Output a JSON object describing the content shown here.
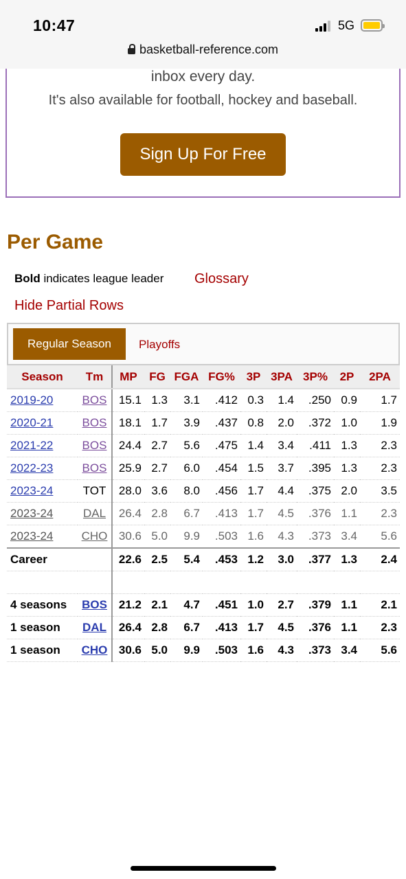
{
  "status": {
    "time": "10:47",
    "network": "5G",
    "url": "basketball-reference.com"
  },
  "promo": {
    "line1": "inbox every day.",
    "line2": "It's also available for football, hockey and baseball.",
    "button": "Sign Up For Free"
  },
  "section": {
    "title": "Per Game",
    "bold_word": "Bold",
    "note": " indicates league leader",
    "glossary": "Glossary",
    "hide_partial": "Hide Partial Rows"
  },
  "tabs": {
    "active": "Regular Season",
    "other": "Playoffs"
  },
  "table": {
    "headers": [
      "Season",
      "Tm",
      "MP",
      "FG",
      "FGA",
      "FG%",
      "3P",
      "3PA",
      "3P%",
      "2P",
      "2PA"
    ],
    "rows": [
      {
        "season": "2019-20",
        "team": "BOS",
        "vals": [
          "15.1",
          "1.3",
          "3.1",
          ".412",
          "0.3",
          "1.4",
          ".250",
          "0.9",
          "1.7"
        ]
      },
      {
        "season": "2020-21",
        "team": "BOS",
        "vals": [
          "18.1",
          "1.7",
          "3.9",
          ".437",
          "0.8",
          "2.0",
          ".372",
          "1.0",
          "1.9"
        ]
      },
      {
        "season": "2021-22",
        "team": "BOS",
        "vals": [
          "24.4",
          "2.7",
          "5.6",
          ".475",
          "1.4",
          "3.4",
          ".411",
          "1.3",
          "2.3"
        ]
      },
      {
        "season": "2022-23",
        "team": "BOS",
        "vals": [
          "25.9",
          "2.7",
          "6.0",
          ".454",
          "1.5",
          "3.7",
          ".395",
          "1.3",
          "2.3"
        ]
      },
      {
        "season": "2023-24",
        "team": "TOT",
        "vals": [
          "28.0",
          "3.6",
          "8.0",
          ".456",
          "1.7",
          "4.4",
          ".375",
          "2.0",
          "3.5"
        ]
      },
      {
        "season": "2023-24",
        "team": "DAL",
        "vals": [
          "26.4",
          "2.8",
          "6.7",
          ".413",
          "1.7",
          "4.5",
          ".376",
          "1.1",
          "2.3"
        ]
      },
      {
        "season": "2023-24",
        "team": "CHO",
        "vals": [
          "30.6",
          "5.0",
          "9.9",
          ".503",
          "1.6",
          "4.3",
          ".373",
          "3.4",
          "5.6"
        ]
      }
    ],
    "career": {
      "label": "Career",
      "vals": [
        "22.6",
        "2.5",
        "5.4",
        ".453",
        "1.2",
        "3.0",
        ".377",
        "1.3",
        "2.4"
      ]
    },
    "summaries": [
      {
        "label": "4 seasons",
        "team": "BOS",
        "vals": [
          "21.2",
          "2.1",
          "4.7",
          ".451",
          "1.0",
          "2.7",
          ".379",
          "1.1",
          "2.1"
        ]
      },
      {
        "label": "1 season",
        "team": "DAL",
        "vals": [
          "26.4",
          "2.8",
          "6.7",
          ".413",
          "1.7",
          "4.5",
          ".376",
          "1.1",
          "2.3"
        ]
      },
      {
        "label": "1 season",
        "team": "CHO",
        "vals": [
          "30.6",
          "5.0",
          "9.9",
          ".503",
          "1.6",
          "4.3",
          ".373",
          "3.4",
          "5.6"
        ]
      }
    ]
  }
}
